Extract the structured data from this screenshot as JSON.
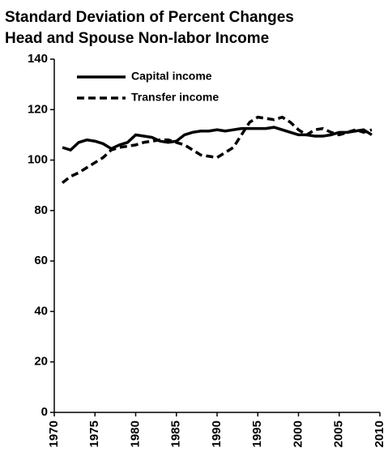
{
  "chart_data": {
    "type": "line",
    "title": [
      "Standard Deviation of Percent Changes",
      "Head and Spouse Non-labor Income"
    ],
    "x": [
      1971,
      1972,
      1973,
      1974,
      1975,
      1976,
      1977,
      1978,
      1979,
      1980,
      1981,
      1982,
      1983,
      1984,
      1985,
      1986,
      1987,
      1988,
      1989,
      1990,
      1991,
      1992,
      1993,
      1994,
      1995,
      1996,
      1997,
      1998,
      1999,
      2000,
      2001,
      2002,
      2003,
      2004,
      2005,
      2006,
      2007,
      2008,
      2009
    ],
    "series": [
      {
        "name": "Capital income",
        "color": "#000000",
        "dash": "solid",
        "values": [
          105,
          104,
          107,
          108,
          107.5,
          106.5,
          104.5,
          106,
          107,
          110,
          109.5,
          109,
          107.5,
          107,
          107.5,
          110,
          111,
          111.5,
          111.5,
          112,
          111.5,
          112,
          112.5,
          112.5,
          112.5,
          112.5,
          113,
          112,
          111,
          110,
          110,
          109.5,
          109.5,
          110,
          111,
          111,
          111.5,
          112,
          110
        ]
      },
      {
        "name": "Transfer income",
        "color": "#000000",
        "dash": "dashed",
        "values": [
          91,
          93.5,
          95,
          97,
          99,
          101,
          104,
          105,
          105.5,
          106,
          107,
          107.5,
          108,
          108,
          107,
          106,
          104,
          102,
          101.5,
          101,
          103,
          105,
          110,
          115,
          117,
          116.5,
          116,
          117,
          115,
          112,
          110,
          112,
          112.5,
          111,
          110,
          111,
          112,
          111,
          112
        ]
      }
    ],
    "xlim": [
      1970,
      2010
    ],
    "xticks": [
      1970,
      1975,
      1980,
      1985,
      1990,
      1995,
      2000,
      2005,
      2010
    ],
    "ylim": [
      0,
      140
    ],
    "yticks": [
      0,
      20,
      40,
      60,
      80,
      100,
      120,
      140
    ],
    "grid": false,
    "legend": "upper-left"
  }
}
